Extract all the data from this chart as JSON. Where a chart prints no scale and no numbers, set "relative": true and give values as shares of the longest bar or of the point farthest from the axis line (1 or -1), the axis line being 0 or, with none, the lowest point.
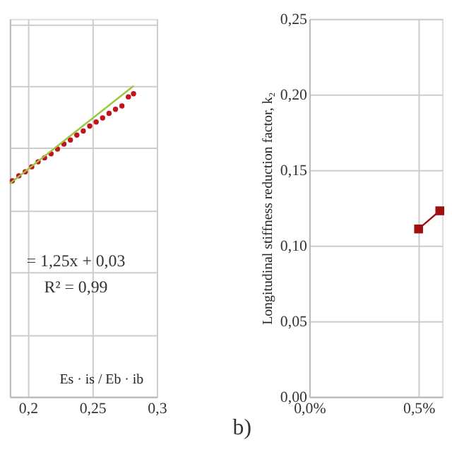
{
  "chart_data": [
    {
      "type": "scatter",
      "xlabel": "Es · is / Eb · ib",
      "annotations": [
        "= 1,25x + 0,03",
        "R² = 0,99"
      ],
      "xlim": [
        0.186,
        0.3
      ],
      "xticks": [
        {
          "value": 0.2,
          "label": "0,2"
        },
        {
          "value": 0.25,
          "label": "0,25"
        },
        {
          "value": 0.3,
          "label": "0,3"
        }
      ],
      "relative": true,
      "grid": true,
      "series": [
        {
          "marker": "circle",
          "color": "#c0141e",
          "x": [
            0.188,
            0.193,
            0.198,
            0.203,
            0.208,
            0.213,
            0.218,
            0.223,
            0.228,
            0.233,
            0.238,
            0.243,
            0.248,
            0.253,
            0.258,
            0.263,
            0.268,
            0.273,
            0.278,
            0.282
          ],
          "values": [
            0.695,
            0.711,
            0.724,
            0.74,
            0.756,
            0.769,
            0.782,
            0.797,
            0.813,
            0.826,
            0.842,
            0.855,
            0.871,
            0.884,
            0.897,
            0.912,
            0.925,
            0.936,
            0.965,
            0.975
          ]
        },
        {
          "type": "line",
          "marker": "none",
          "color": "#9bc53d",
          "x": [
            0.186,
            0.282
          ],
          "values": [
            0.686,
            1
          ]
        }
      ]
    },
    {
      "type": "line",
      "ylabel": "Longitudinal stiffness reduction factor, k₂",
      "annotations": [
        "b)"
      ],
      "xlim": [
        0,
        0.608
      ],
      "xticks": [
        {
          "value": 0,
          "label": "0,0%"
        },
        {
          "value": 0.5,
          "label": "0,5%"
        }
      ],
      "ylim": [
        0,
        0.25
      ],
      "yticks": [
        {
          "value": 0,
          "label": "0,00"
        },
        {
          "value": 0.05,
          "label": "0,05"
        },
        {
          "value": 0.1,
          "label": "0,10"
        },
        {
          "value": 0.15,
          "label": "0,15"
        },
        {
          "value": 0.2,
          "label": "0,20"
        },
        {
          "value": 0.25,
          "label": "0,25"
        }
      ],
      "grid": true,
      "series": [
        {
          "marker": "square",
          "color": "#a01010",
          "x": [
            0.5,
            0.597
          ],
          "values": [
            0.111,
            0.123
          ]
        }
      ]
    }
  ]
}
